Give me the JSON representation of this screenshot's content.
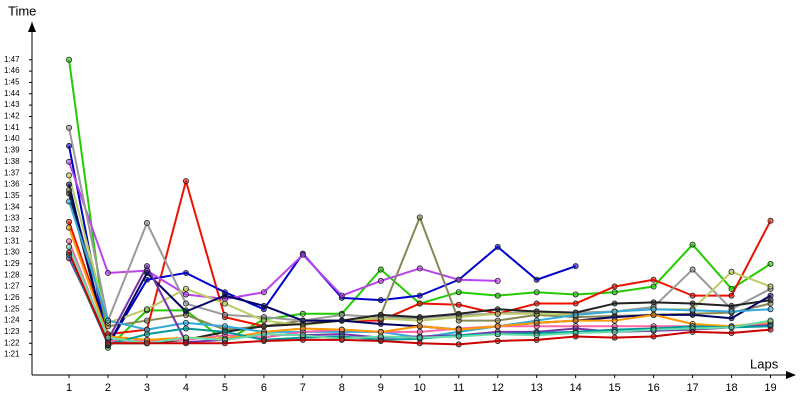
{
  "chart_data": {
    "type": "line",
    "y_label": "Time",
    "x_label": "Laps",
    "x": [
      1,
      2,
      3,
      4,
      5,
      6,
      7,
      8,
      9,
      10,
      11,
      12,
      13,
      14,
      15,
      16,
      17,
      18,
      19
    ],
    "xlim": [
      0.05,
      19.5
    ],
    "xticks": [
      1,
      2,
      3,
      4,
      5,
      6,
      7,
      8,
      9,
      10,
      11,
      12,
      13,
      14,
      15,
      16,
      17,
      18,
      19
    ],
    "ylim": [
      79.2,
      109.8
    ],
    "yticks": [
      {
        "value": 81,
        "label": "1:21"
      },
      {
        "value": 82,
        "label": "1:22"
      },
      {
        "value": 83,
        "label": "1:23"
      },
      {
        "value": 84,
        "label": "1:24"
      },
      {
        "value": 85,
        "label": "1:25"
      },
      {
        "value": 86,
        "label": "1:26"
      },
      {
        "value": 87,
        "label": "1:27"
      },
      {
        "value": 88,
        "label": "1:28"
      },
      {
        "value": 89,
        "label": "1:29"
      },
      {
        "value": 90,
        "label": "1:30"
      },
      {
        "value": 91,
        "label": "1:31"
      },
      {
        "value": 92,
        "label": "1:32"
      },
      {
        "value": 93,
        "label": "1:33"
      },
      {
        "value": 94,
        "label": "1:34"
      },
      {
        "value": 95,
        "label": "1:35"
      },
      {
        "value": 96,
        "label": "1:36"
      },
      {
        "value": 97,
        "label": "1:37"
      },
      {
        "value": 98,
        "label": "1:38"
      },
      {
        "value": 99,
        "label": "1:39"
      },
      {
        "value": 100,
        "label": "1:40"
      },
      {
        "value": 101,
        "label": "1:41"
      },
      {
        "value": 102,
        "label": "1:42"
      },
      {
        "value": 103,
        "label": "1:43"
      },
      {
        "value": 104,
        "label": "1:44"
      },
      {
        "value": 105,
        "label": "1:45"
      },
      {
        "value": 106,
        "label": "1:46"
      },
      {
        "value": 107,
        "label": "1:47"
      }
    ],
    "series": [
      {
        "color": "#22cc00",
        "values": [
          107,
          81.6,
          84.9,
          84.9,
          82.2,
          84.1,
          84.6,
          84.6,
          88.5,
          85.5,
          86.5,
          86.2,
          86.5,
          86.3,
          86.5,
          87,
          90.7,
          86.8,
          89
        ]
      },
      {
        "color": "#ee1100",
        "values": [
          92.7,
          82.8,
          83.2,
          96.3,
          84.3,
          83.5,
          84,
          84,
          84,
          85.5,
          85.4,
          84.6,
          85.5,
          85.5,
          87,
          87.6,
          86.2,
          86.2,
          92.8
        ]
      },
      {
        "color": "#0000cc",
        "values": [
          99.4,
          81.8,
          87.6,
          88.2,
          86.5,
          85,
          89.9,
          86,
          85.8,
          86.2,
          87.6,
          90.5,
          87.6,
          88.8,
          null,
          null,
          null,
          null,
          null
        ]
      },
      {
        "color": "#bb44ee",
        "values": [
          98,
          88.2,
          88.4,
          86.3,
          85.9,
          86.5,
          89.8,
          86.2,
          87.5,
          88.6,
          87.6,
          87.5,
          null,
          null,
          null,
          null,
          null,
          null,
          null
        ]
      },
      {
        "color": "#888855",
        "values": [
          95.5,
          83.5,
          84,
          84.5,
          83.2,
          83.5,
          84,
          84,
          84.5,
          93.1,
          84,
          84,
          84.5,
          84.3,
          84.4,
          84.5,
          84.6,
          84.7,
          85.5
        ]
      },
      {
        "color": "#999999",
        "values": [
          101,
          84,
          92.6,
          85.5,
          84.5,
          84.3,
          84,
          84.5,
          84.3,
          84.2,
          84.5,
          84.6,
          84.8,
          84.7,
          84.8,
          85.2,
          88.5,
          85,
          86.8
        ]
      },
      {
        "color": "#bbcc66",
        "values": [
          96.8,
          83.8,
          85,
          86.8,
          85.5,
          84,
          83.6,
          84,
          84.2,
          84,
          84.3,
          84.6,
          84.6,
          84.5,
          84.8,
          85,
          85,
          88.3,
          87
        ]
      },
      {
        "color": "#222222",
        "values": [
          95.2,
          82,
          82,
          82.3,
          83,
          83.5,
          83.7,
          84,
          84.5,
          84.3,
          84.6,
          85,
          84.8,
          84.7,
          85.5,
          85.6,
          85.5,
          85.3,
          85.8
        ]
      },
      {
        "color": "#000066",
        "values": [
          96,
          81.8,
          88.2,
          84.8,
          86.2,
          85.3,
          84,
          84,
          83.7,
          83.5,
          83.2,
          83.5,
          83.8,
          84,
          84.3,
          84.5,
          84.5,
          84.2,
          86.2
        ]
      },
      {
        "color": "#33aadd",
        "values": [
          94.5,
          84,
          83.2,
          83.8,
          83.5,
          83,
          83,
          83,
          83,
          82.5,
          83,
          83.5,
          84,
          84.5,
          84.8,
          85,
          84.9,
          84.8,
          85
        ]
      },
      {
        "color": "#ff66aa",
        "values": [
          91,
          82.2,
          82.2,
          82.3,
          82.7,
          82.5,
          83,
          83.2,
          83,
          83,
          83.3,
          83.5,
          83.5,
          83.5,
          83.5,
          83.5,
          83.5,
          83.5,
          83.7
        ]
      },
      {
        "color": "#ff9900",
        "values": [
          92.2,
          82.6,
          82.3,
          82.5,
          82.4,
          83,
          83.3,
          83.2,
          83,
          83.5,
          83.2,
          83.5,
          83.8,
          84,
          84,
          84.5,
          83.7,
          83.5,
          83.9
        ]
      },
      {
        "color": "#7733aa",
        "values": [
          89.5,
          82.3,
          88.8,
          82.1,
          82.3,
          82.8,
          82.7,
          82.8,
          82.5,
          82.6,
          82.7,
          83,
          83,
          83.3,
          83,
          83.1,
          83.2,
          83.4,
          83.6
        ]
      },
      {
        "color": "#009999",
        "values": [
          89.8,
          81.9,
          82.8,
          83.3,
          83,
          82.3,
          82.5,
          82.6,
          82.3,
          82.4,
          82.7,
          82.8,
          82.9,
          83,
          83.2,
          83.3,
          83.5,
          83.4,
          83.5
        ]
      },
      {
        "color": "#66ddaa",
        "values": [
          90.5,
          82.5,
          82,
          82.5,
          82.3,
          82.8,
          82.7,
          82.4,
          82.6,
          82.5,
          82.6,
          82.8,
          82.7,
          82.9,
          83,
          83.2,
          83.3,
          83.4,
          84
        ]
      },
      {
        "color": "#cc0000",
        "values": [
          90,
          82,
          82,
          82,
          82,
          82.2,
          82.3,
          82.3,
          82.2,
          82,
          81.9,
          82.2,
          82.3,
          82.6,
          82.5,
          82.6,
          83,
          82.9,
          83.2
        ]
      }
    ]
  }
}
